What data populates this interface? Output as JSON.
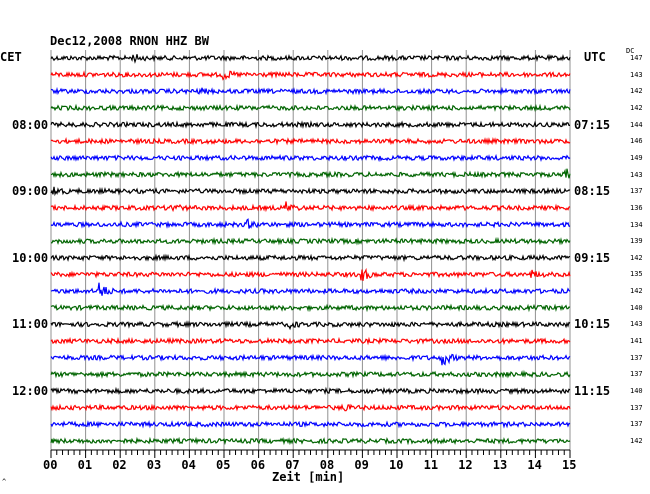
{
  "header": {
    "title": "Dec12,2008   RNON HHZ BW",
    "left_zone": "CET",
    "right_zone": "UTC",
    "dc_label": "DC"
  },
  "xaxis": {
    "label": "Zeit [min]",
    "ticks": [
      "00",
      "01",
      "02",
      "03",
      "04",
      "05",
      "06",
      "07",
      "08",
      "09",
      "10",
      "11",
      "12",
      "13",
      "14",
      "15"
    ]
  },
  "left_hours": [
    "08:00",
    "09:00",
    "10:00",
    "11:00",
    "12:00"
  ],
  "right_hours": [
    "07:15",
    "08:15",
    "09:15",
    "10:15",
    "11:15"
  ],
  "dc_values": [
    "147",
    "143",
    "142",
    "142",
    "144",
    "146",
    "149",
    "143",
    "137",
    "136",
    "134",
    "139",
    "142",
    "135",
    "142",
    "140",
    "143",
    "141",
    "137",
    "137",
    "140",
    "137",
    "137",
    "142"
  ],
  "trace_colors": [
    "#000000",
    "#ff0000",
    "#0000ff",
    "#006400"
  ],
  "bottom_mark": "^",
  "events": [
    {
      "trace": 0,
      "minute": 2.4,
      "amp": 3
    },
    {
      "trace": 1,
      "minute": 5.0,
      "amp": 4
    },
    {
      "trace": 2,
      "minute": 4.3,
      "amp": 2
    },
    {
      "trace": 7,
      "minute": 14.9,
      "amp": 5
    },
    {
      "trace": 8,
      "minute": 0.1,
      "amp": 4
    },
    {
      "trace": 9,
      "minute": 3.5,
      "amp": 4
    },
    {
      "trace": 9,
      "minute": 6.8,
      "amp": 5
    },
    {
      "trace": 10,
      "minute": 5.7,
      "amp": 3
    },
    {
      "trace": 13,
      "minute": 9.0,
      "amp": 6
    },
    {
      "trace": 13,
      "minute": 13.9,
      "amp": 3
    },
    {
      "trace": 14,
      "minute": 1.4,
      "amp": 9
    },
    {
      "trace": 16,
      "minute": 6.9,
      "amp": 3
    },
    {
      "trace": 18,
      "minute": 11.3,
      "amp": 10
    },
    {
      "trace": 21,
      "minute": 8.4,
      "amp": 3
    }
  ]
}
